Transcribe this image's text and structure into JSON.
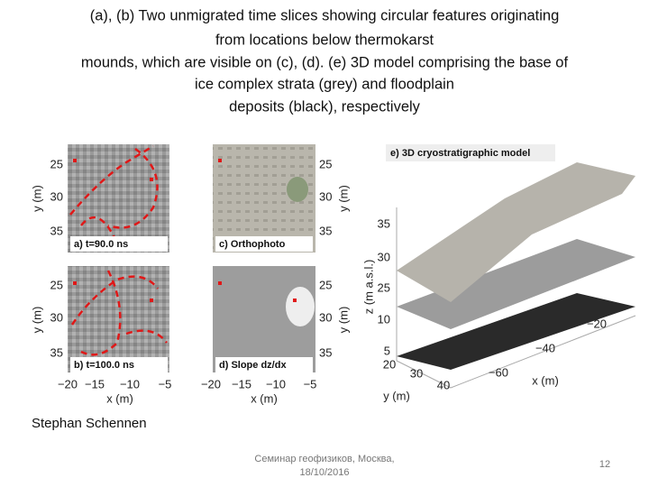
{
  "title": [
    "(a), (b) Two unmigrated time slices showing circular features originating",
    "from locations below thermokarst",
    "mounds, which are visible on (c), (d). (e) 3D model comprising the base of",
    "ice complex strata (grey) and floodplain",
    "deposits (black), respectively"
  ],
  "figure": {
    "panel_labels": [
      "a) t=90.0 ns",
      "b) t=100.0 ns",
      "c) Orthophoto",
      "d) Slope dz/dx"
    ],
    "y_ticks": [
      "25",
      "30",
      "35"
    ],
    "y_label": "y (m)",
    "x_ticks": [
      "−20",
      "−15",
      "−10",
      "−5"
    ],
    "x_label": "x (m)",
    "model": {
      "title": "e) 3D cryostratigraphic model",
      "z_label": "z (m a.s.l.)",
      "z_ticks": [
        "35",
        "30",
        "25",
        "10",
        "5"
      ],
      "y_ticks": [
        "20",
        "30",
        "40"
      ],
      "y_label": "y (m)",
      "x_ticks": [
        "−20",
        "−40",
        "−60"
      ],
      "x_label": "x (m)"
    }
  },
  "author": "Stephan Schennen",
  "footer": [
    "Семинар геофизиков, Москва,",
    "18/10/2016"
  ],
  "page_number": "12"
}
